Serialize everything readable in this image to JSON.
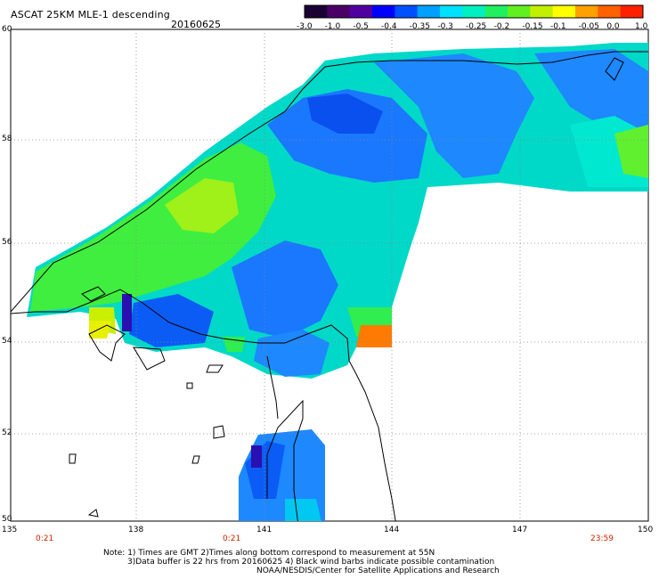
{
  "header": {
    "title": "ASCAT 25KM MLE-1 descending",
    "date": "20160625"
  },
  "colorbar": {
    "ticks": [
      "-3.0",
      "-1.0",
      "-0.5",
      "-0.4",
      "-0.35",
      "-0.3",
      "-0.25",
      "-0.2",
      "-0.15",
      "-0.1",
      "-0.05",
      "0.0",
      "1.0"
    ],
    "colors": [
      "#1a0033",
      "#4a0066",
      "#5000a0",
      "#0000ff",
      "#0050ff",
      "#00a0ff",
      "#00e0ff",
      "#00f0c0",
      "#20f060",
      "#60f020",
      "#c0f000",
      "#ffff00",
      "#ffa000",
      "#ff6000",
      "#ff2000"
    ]
  },
  "axes": {
    "lat_labels": [
      "60",
      "58",
      "56",
      "54",
      "52",
      "50"
    ],
    "lon_labels": [
      "135",
      "138",
      "141",
      "144",
      "147",
      "150"
    ],
    "time_labels": [
      "0:21",
      "0:21",
      "23:59"
    ]
  },
  "map_colors": {
    "blue": "#0a5cf5",
    "blue_light": "#1e88ff",
    "cyan": "#00c8f0",
    "aqua": "#00f0d0",
    "green": "#28f04a",
    "lime": "#80f01e",
    "yellow": "#e8f000",
    "orange": "#ff7a00",
    "purple": "#2a10b0",
    "grid": "#888888",
    "coast": "#000000"
  },
  "note": {
    "line1": "Note: 1) Times are GMT 2)Times along bottom correspond to measurement at 55N",
    "line2": "3)Data buffer is 22 hrs from 20160625 4) Black wind barbs indicate possible contamination",
    "line3": "NOAA/NESDIS/Center for Satellite Applications and Research"
  }
}
